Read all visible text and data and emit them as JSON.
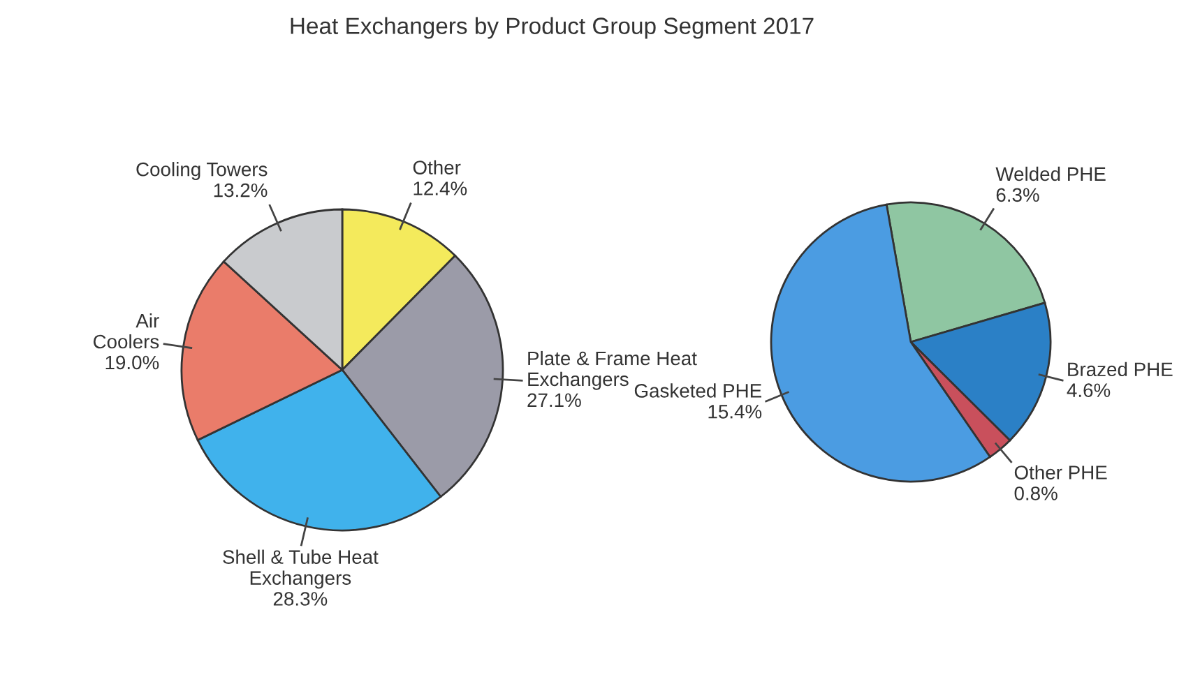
{
  "chart_data": [
    {
      "type": "pie",
      "title": "Heat Exchangers by Product Group Segment 2017",
      "categories": [
        "Other",
        "Plate & Frame Heat\nExchangers",
        "Shell & Tube Heat\nExchangers",
        "Air\nCoolers",
        "Cooling Towers"
      ],
      "values": [
        12.4,
        27.1,
        28.3,
        19.0,
        13.2
      ],
      "value_labels": [
        "12.4%",
        "27.1%",
        "28.3%",
        "19.0%",
        "13.2%"
      ],
      "colors": [
        "#f4ea5c",
        "#9b9ba8",
        "#40b2ec",
        "#ea7c6a",
        "#c9cbce"
      ]
    },
    {
      "type": "pie",
      "categories": [
        "Welded PHE",
        "Brazed PHE",
        "Other PHE",
        "Gasketed PHE"
      ],
      "values": [
        6.3,
        4.6,
        0.8,
        15.4
      ],
      "value_labels": [
        "6.3%",
        "4.6%",
        "0.8%",
        "15.4%"
      ],
      "colors": [
        "#8fc6a2",
        "#2b80c6",
        "#c9505c",
        "#4b9ce2"
      ]
    }
  ]
}
